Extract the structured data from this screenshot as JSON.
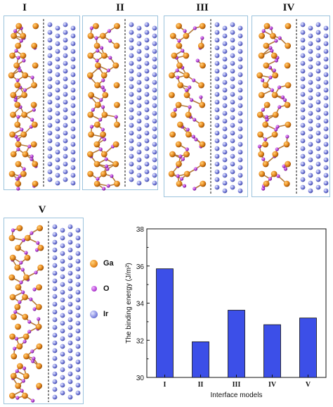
{
  "panels": [
    {
      "label": "I"
    },
    {
      "label": "II"
    },
    {
      "label": "III"
    },
    {
      "label": "IV"
    },
    {
      "label": "V"
    }
  ],
  "legend": [
    {
      "label": "Ga",
      "color": "#e8891d"
    },
    {
      "label": "O",
      "color": "#b53fd6"
    },
    {
      "label": "Ir",
      "color": "#7f86e0"
    }
  ],
  "colors": {
    "panel_border": "#9cc3dd",
    "bar_fill": "#3c4fe8",
    "ga": "#e8891d",
    "o": "#b53fd6",
    "ir": "#7f86e0",
    "bond": "#b57a3a"
  },
  "chart_data": {
    "type": "bar",
    "categories": [
      "I",
      "II",
      "III",
      "IV",
      "V"
    ],
    "values": [
      35.85,
      31.92,
      33.62,
      32.84,
      33.2
    ],
    "xlabel": "Interface models",
    "ylabel": "The binding energy (J/m²)",
    "ylim": [
      30,
      38
    ],
    "yticks": [
      "30",
      "32",
      "34",
      "36",
      "38"
    ],
    "grid": false,
    "legend": "none"
  }
}
